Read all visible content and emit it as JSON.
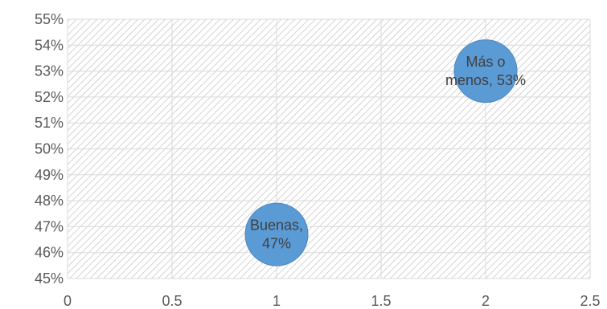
{
  "chart_data": {
    "type": "scatter",
    "subtype": "bubble",
    "title": "",
    "xlabel": "",
    "ylabel": "",
    "xlim": [
      0,
      2.5
    ],
    "ylim": [
      0.45,
      0.55
    ],
    "x_ticks": [
      0,
      0.5,
      1,
      1.5,
      2,
      2.5
    ],
    "x_tick_labels": [
      "0",
      "0.5",
      "1",
      "1.5",
      "2",
      "2.5"
    ],
    "y_ticks": [
      0.45,
      0.46,
      0.47,
      0.48,
      0.49,
      0.5,
      0.51,
      0.52,
      0.53,
      0.54,
      0.55
    ],
    "y_tick_labels": [
      "45%",
      "46%",
      "47%",
      "48%",
      "49%",
      "50%",
      "51%",
      "52%",
      "53%",
      "54%",
      "55%"
    ],
    "grid": true,
    "plot_background": "hatched",
    "legend": "none",
    "points": [
      {
        "x": 1,
        "y": 0.467,
        "label_lines": [
          "Buenas,",
          "47%"
        ]
      },
      {
        "x": 2,
        "y": 0.53,
        "label_lines": [
          "Más o",
          "menos, 53%"
        ]
      }
    ],
    "colors": {
      "bubble": "#5b9bd5",
      "bubble_edge": "#4a86c0",
      "grid": "#d9d9d9",
      "hatch": "#c8c8c8",
      "text": "#595959"
    }
  }
}
